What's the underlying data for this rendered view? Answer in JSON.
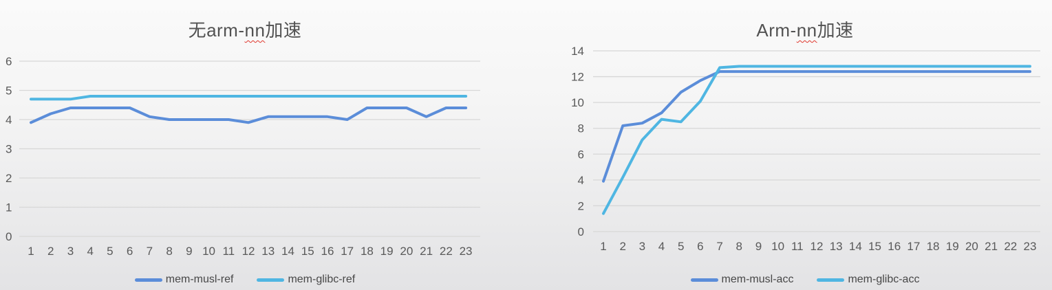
{
  "page": {
    "background_top": "#fafafa",
    "background_bottom": "#e3e3e5"
  },
  "colors": {
    "grid": "#d7d7d7",
    "axis_text": "#595959",
    "title_text": "#525252",
    "legend_text": "#474747",
    "squiggle_red": "#e0362c",
    "series_blue": "#5b8dd9",
    "series_cyan": "#4fb6e2"
  },
  "charts": [
    {
      "title_parts": {
        "pre": "无arm-",
        "underlined": "nn",
        "post": "加速"
      },
      "legend": [
        {
          "label": "mem-musl-ref"
        },
        {
          "label": "mem-glibc-ref"
        }
      ]
    },
    {
      "title_parts": {
        "pre": "Arm-",
        "underlined": "nn",
        "post": "加速"
      },
      "legend": [
        {
          "label": "mem-musl-acc"
        },
        {
          "label": "mem-glibc-acc"
        }
      ]
    }
  ],
  "chart_data": [
    {
      "type": "line",
      "title": "无arm-nn加速",
      "x": [
        1,
        2,
        3,
        4,
        5,
        6,
        7,
        8,
        9,
        10,
        11,
        12,
        13,
        14,
        15,
        16,
        17,
        18,
        19,
        20,
        21,
        22,
        23
      ],
      "series": [
        {
          "name": "mem-musl-ref",
          "color": "#5b8dd9",
          "values": [
            3.9,
            4.2,
            4.4,
            4.4,
            4.4,
            4.4,
            4.1,
            4.0,
            4.0,
            4.0,
            4.0,
            3.9,
            4.1,
            4.1,
            4.1,
            4.1,
            4.0,
            4.4,
            4.4,
            4.4,
            4.1,
            4.4,
            4.4
          ]
        },
        {
          "name": "mem-glibc-ref",
          "color": "#4fb6e2",
          "values": [
            4.7,
            4.7,
            4.7,
            4.8,
            4.8,
            4.8,
            4.8,
            4.8,
            4.8,
            4.8,
            4.8,
            4.8,
            4.8,
            4.8,
            4.8,
            4.8,
            4.8,
            4.8,
            4.8,
            4.8,
            4.8,
            4.8,
            4.8
          ]
        }
      ],
      "xlabel": "",
      "ylabel": "",
      "ylim": [
        0,
        6
      ],
      "yticks": [
        0,
        1,
        2,
        3,
        4,
        5,
        6
      ],
      "grid": true,
      "legend_position": "bottom"
    },
    {
      "type": "line",
      "title": "Arm-nn加速",
      "x": [
        1,
        2,
        3,
        4,
        5,
        6,
        7,
        8,
        9,
        10,
        11,
        12,
        13,
        14,
        15,
        16,
        17,
        18,
        19,
        20,
        21,
        22,
        23
      ],
      "series": [
        {
          "name": "mem-musl-acc",
          "color": "#5b8dd9",
          "values": [
            3.9,
            8.2,
            8.4,
            9.2,
            10.8,
            11.7,
            12.4,
            12.4,
            12.4,
            12.4,
            12.4,
            12.4,
            12.4,
            12.4,
            12.4,
            12.4,
            12.4,
            12.4,
            12.4,
            12.4,
            12.4,
            12.4,
            12.4
          ]
        },
        {
          "name": "mem-glibc-acc",
          "color": "#4fb6e2",
          "values": [
            1.4,
            4.2,
            7.1,
            8.7,
            8.5,
            10.1,
            12.7,
            12.8,
            12.8,
            12.8,
            12.8,
            12.8,
            12.8,
            12.8,
            12.8,
            12.8,
            12.8,
            12.8,
            12.8,
            12.8,
            12.8,
            12.8,
            12.8
          ]
        }
      ],
      "xlabel": "",
      "ylabel": "",
      "ylim": [
        0,
        14
      ],
      "yticks": [
        0,
        2,
        4,
        6,
        8,
        10,
        12,
        14
      ],
      "grid": true,
      "legend_position": "bottom"
    }
  ]
}
